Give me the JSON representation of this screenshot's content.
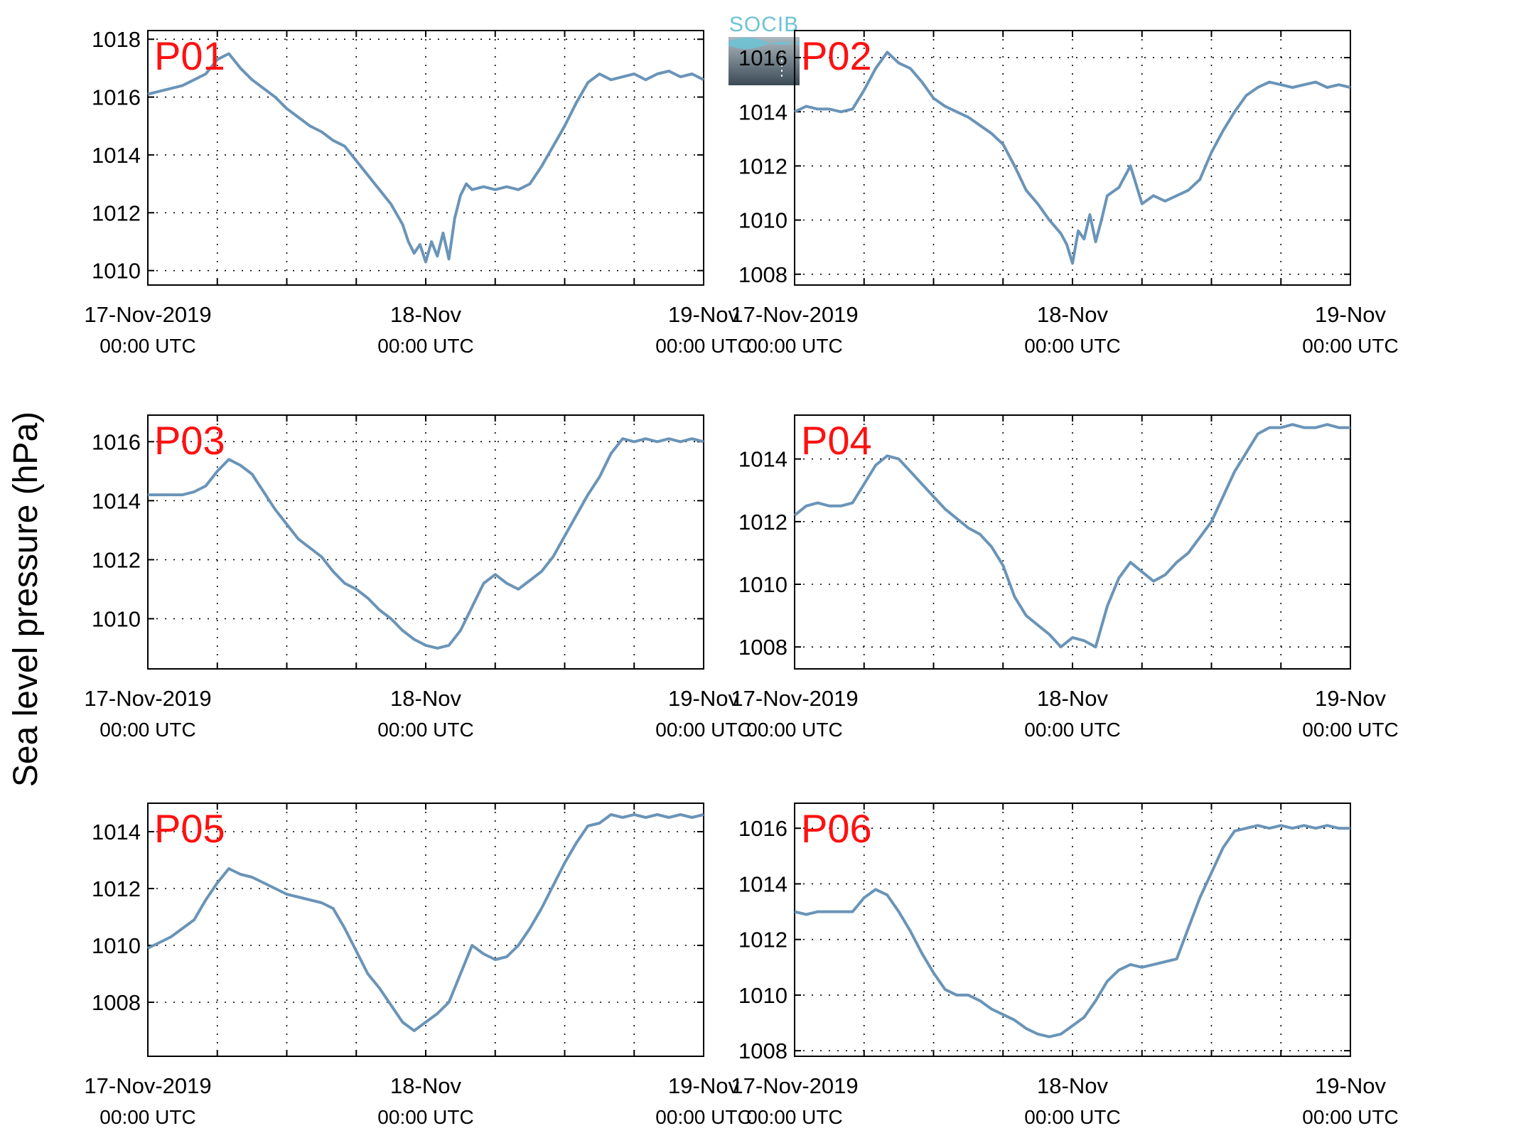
{
  "figure": {
    "ylabel": "Sea level pressure (hPa)",
    "logo_text": "SOCIB",
    "line_color": "#6a94b8",
    "label_color": "#ff1010"
  },
  "chart_data": [
    {
      "type": "line",
      "name": "P01",
      "x_ticks": [
        {
          "label": "17-Nov-2019",
          "sub": "00:00 UTC",
          "hour": 0
        },
        {
          "label": "18-Nov",
          "sub": "00:00 UTC",
          "hour": 24
        },
        {
          "label": "19-Nov",
          "sub": "00:00 UTC",
          "hour": 48
        }
      ],
      "xlim": [
        0,
        48
      ],
      "ylim": [
        1009.5,
        1018.3
      ],
      "yticks": [
        1010,
        1012,
        1014,
        1016,
        1018
      ],
      "points": [
        [
          0,
          1016.1
        ],
        [
          1,
          1016.2
        ],
        [
          2,
          1016.3
        ],
        [
          3,
          1016.4
        ],
        [
          4,
          1016.6
        ],
        [
          5,
          1016.8
        ],
        [
          6,
          1017.3
        ],
        [
          7,
          1017.5
        ],
        [
          8,
          1017.0
        ],
        [
          9,
          1016.6
        ],
        [
          10,
          1016.3
        ],
        [
          11,
          1016.0
        ],
        [
          12,
          1015.6
        ],
        [
          13,
          1015.3
        ],
        [
          14,
          1015.0
        ],
        [
          15,
          1014.8
        ],
        [
          16,
          1014.5
        ],
        [
          17,
          1014.3
        ],
        [
          18,
          1013.8
        ],
        [
          19,
          1013.3
        ],
        [
          20,
          1012.8
        ],
        [
          21,
          1012.3
        ],
        [
          22,
          1011.6
        ],
        [
          22.5,
          1011.0
        ],
        [
          23,
          1010.6
        ],
        [
          23.5,
          1010.9
        ],
        [
          24,
          1010.3
        ],
        [
          24.5,
          1011.0
        ],
        [
          25,
          1010.5
        ],
        [
          25.5,
          1011.3
        ],
        [
          26,
          1010.4
        ],
        [
          26.5,
          1011.8
        ],
        [
          27,
          1012.6
        ],
        [
          27.5,
          1013.0
        ],
        [
          28,
          1012.8
        ],
        [
          29,
          1012.9
        ],
        [
          30,
          1012.8
        ],
        [
          31,
          1012.9
        ],
        [
          32,
          1012.8
        ],
        [
          33,
          1013.0
        ],
        [
          34,
          1013.6
        ],
        [
          35,
          1014.3
        ],
        [
          36,
          1015.0
        ],
        [
          37,
          1015.8
        ],
        [
          38,
          1016.5
        ],
        [
          39,
          1016.8
        ],
        [
          40,
          1016.6
        ],
        [
          41,
          1016.7
        ],
        [
          42,
          1016.8
        ],
        [
          43,
          1016.6
        ],
        [
          44,
          1016.8
        ],
        [
          45,
          1016.9
        ],
        [
          46,
          1016.7
        ],
        [
          47,
          1016.8
        ],
        [
          48,
          1016.6
        ]
      ]
    },
    {
      "type": "line",
      "name": "P02",
      "x_ticks": [
        {
          "label": "17-Nov-2019",
          "sub": "00:00 UTC",
          "hour": 0
        },
        {
          "label": "18-Nov",
          "sub": "00:00 UTC",
          "hour": 24
        },
        {
          "label": "19-Nov",
          "sub": "00:00 UTC",
          "hour": 48
        }
      ],
      "xlim": [
        0,
        48
      ],
      "ylim": [
        1007.6,
        1017.0
      ],
      "yticks": [
        1008,
        1010,
        1012,
        1014,
        1016
      ],
      "points": [
        [
          0,
          1014.0
        ],
        [
          1,
          1014.2
        ],
        [
          2,
          1014.1
        ],
        [
          3,
          1014.1
        ],
        [
          4,
          1014.0
        ],
        [
          5,
          1014.1
        ],
        [
          6,
          1014.8
        ],
        [
          7,
          1015.6
        ],
        [
          8,
          1016.2
        ],
        [
          9,
          1015.8
        ],
        [
          10,
          1015.6
        ],
        [
          11,
          1015.1
        ],
        [
          12,
          1014.5
        ],
        [
          13,
          1014.2
        ],
        [
          14,
          1014.0
        ],
        [
          15,
          1013.8
        ],
        [
          16,
          1013.5
        ],
        [
          17,
          1013.2
        ],
        [
          18,
          1012.8
        ],
        [
          19,
          1012.0
        ],
        [
          20,
          1011.1
        ],
        [
          21,
          1010.6
        ],
        [
          22,
          1010.0
        ],
        [
          23,
          1009.5
        ],
        [
          23.5,
          1009.1
        ],
        [
          24,
          1008.4
        ],
        [
          24.5,
          1009.6
        ],
        [
          25,
          1009.3
        ],
        [
          25.5,
          1010.2
        ],
        [
          26,
          1009.2
        ],
        [
          26.5,
          1010.0
        ],
        [
          27,
          1010.9
        ],
        [
          28,
          1011.2
        ],
        [
          29,
          1012.0
        ],
        [
          30,
          1010.6
        ],
        [
          31,
          1010.9
        ],
        [
          32,
          1010.7
        ],
        [
          33,
          1010.9
        ],
        [
          34,
          1011.1
        ],
        [
          35,
          1011.5
        ],
        [
          36,
          1012.5
        ],
        [
          37,
          1013.3
        ],
        [
          38,
          1014.0
        ],
        [
          39,
          1014.6
        ],
        [
          40,
          1014.9
        ],
        [
          41,
          1015.1
        ],
        [
          42,
          1015.0
        ],
        [
          43,
          1014.9
        ],
        [
          44,
          1015.0
        ],
        [
          45,
          1015.1
        ],
        [
          46,
          1014.9
        ],
        [
          47,
          1015.0
        ],
        [
          48,
          1014.9
        ]
      ]
    },
    {
      "type": "line",
      "name": "P03",
      "x_ticks": [
        {
          "label": "17-Nov-2019",
          "sub": "00:00 UTC",
          "hour": 0
        },
        {
          "label": "18-Nov",
          "sub": "00:00 UTC",
          "hour": 24
        },
        {
          "label": "19-Nov",
          "sub": "00:00 UTC",
          "hour": 48
        }
      ],
      "xlim": [
        0,
        48
      ],
      "ylim": [
        1008.3,
        1016.9
      ],
      "yticks": [
        1010,
        1012,
        1014,
        1016
      ],
      "points": [
        [
          0,
          1014.2
        ],
        [
          1,
          1014.2
        ],
        [
          2,
          1014.2
        ],
        [
          3,
          1014.2
        ],
        [
          4,
          1014.3
        ],
        [
          5,
          1014.5
        ],
        [
          6,
          1015.0
        ],
        [
          7,
          1015.4
        ],
        [
          8,
          1015.2
        ],
        [
          9,
          1014.9
        ],
        [
          10,
          1014.3
        ],
        [
          11,
          1013.7
        ],
        [
          12,
          1013.2
        ],
        [
          13,
          1012.7
        ],
        [
          14,
          1012.4
        ],
        [
          15,
          1012.1
        ],
        [
          16,
          1011.6
        ],
        [
          17,
          1011.2
        ],
        [
          18,
          1011.0
        ],
        [
          19,
          1010.7
        ],
        [
          20,
          1010.3
        ],
        [
          21,
          1010.0
        ],
        [
          22,
          1009.6
        ],
        [
          23,
          1009.3
        ],
        [
          24,
          1009.1
        ],
        [
          25,
          1009.0
        ],
        [
          26,
          1009.1
        ],
        [
          27,
          1009.6
        ],
        [
          28,
          1010.4
        ],
        [
          29,
          1011.2
        ],
        [
          30,
          1011.5
        ],
        [
          31,
          1011.2
        ],
        [
          32,
          1011.0
        ],
        [
          33,
          1011.3
        ],
        [
          34,
          1011.6
        ],
        [
          35,
          1012.1
        ],
        [
          36,
          1012.8
        ],
        [
          37,
          1013.5
        ],
        [
          38,
          1014.2
        ],
        [
          39,
          1014.8
        ],
        [
          40,
          1015.6
        ],
        [
          41,
          1016.1
        ],
        [
          42,
          1016.0
        ],
        [
          43,
          1016.1
        ],
        [
          44,
          1016.0
        ],
        [
          45,
          1016.1
        ],
        [
          46,
          1016.0
        ],
        [
          47,
          1016.1
        ],
        [
          48,
          1016.0
        ]
      ]
    },
    {
      "type": "line",
      "name": "P04",
      "x_ticks": [
        {
          "label": "17-Nov-2019",
          "sub": "00:00 UTC",
          "hour": 0
        },
        {
          "label": "18-Nov",
          "sub": "00:00 UTC",
          "hour": 24
        },
        {
          "label": "19-Nov",
          "sub": "00:00 UTC",
          "hour": 48
        }
      ],
      "xlim": [
        0,
        48
      ],
      "ylim": [
        1007.3,
        1015.4
      ],
      "yticks": [
        1008,
        1010,
        1012,
        1014
      ],
      "points": [
        [
          0,
          1012.2
        ],
        [
          1,
          1012.5
        ],
        [
          2,
          1012.6
        ],
        [
          3,
          1012.5
        ],
        [
          4,
          1012.5
        ],
        [
          5,
          1012.6
        ],
        [
          6,
          1013.2
        ],
        [
          7,
          1013.8
        ],
        [
          8,
          1014.1
        ],
        [
          9,
          1014.0
        ],
        [
          10,
          1013.6
        ],
        [
          11,
          1013.2
        ],
        [
          12,
          1012.8
        ],
        [
          13,
          1012.4
        ],
        [
          14,
          1012.1
        ],
        [
          15,
          1011.8
        ],
        [
          16,
          1011.6
        ],
        [
          17,
          1011.2
        ],
        [
          18,
          1010.6
        ],
        [
          19,
          1009.6
        ],
        [
          20,
          1009.0
        ],
        [
          21,
          1008.7
        ],
        [
          22,
          1008.4
        ],
        [
          23,
          1008.0
        ],
        [
          24,
          1008.3
        ],
        [
          25,
          1008.2
        ],
        [
          26,
          1008.0
        ],
        [
          27,
          1009.3
        ],
        [
          28,
          1010.2
        ],
        [
          29,
          1010.7
        ],
        [
          30,
          1010.4
        ],
        [
          31,
          1010.1
        ],
        [
          32,
          1010.3
        ],
        [
          33,
          1010.7
        ],
        [
          34,
          1011.0
        ],
        [
          35,
          1011.5
        ],
        [
          36,
          1012.0
        ],
        [
          37,
          1012.8
        ],
        [
          38,
          1013.6
        ],
        [
          39,
          1014.2
        ],
        [
          40,
          1014.8
        ],
        [
          41,
          1015.0
        ],
        [
          42,
          1015.0
        ],
        [
          43,
          1015.1
        ],
        [
          44,
          1015.0
        ],
        [
          45,
          1015.0
        ],
        [
          46,
          1015.1
        ],
        [
          47,
          1015.0
        ],
        [
          48,
          1015.0
        ]
      ]
    },
    {
      "type": "line",
      "name": "P05",
      "x_ticks": [
        {
          "label": "17-Nov-2019",
          "sub": "00:00 UTC",
          "hour": 0
        },
        {
          "label": "18-Nov",
          "sub": "00:00 UTC",
          "hour": 24
        },
        {
          "label": "19-Nov",
          "sub": "00:00 UTC",
          "hour": 48
        }
      ],
      "xlim": [
        0,
        48
      ],
      "ylim": [
        1006.1,
        1015.0
      ],
      "yticks": [
        1008,
        1010,
        1012,
        1014
      ],
      "points": [
        [
          0,
          1009.9
        ],
        [
          1,
          1010.1
        ],
        [
          2,
          1010.3
        ],
        [
          3,
          1010.6
        ],
        [
          4,
          1010.9
        ],
        [
          5,
          1011.6
        ],
        [
          6,
          1012.2
        ],
        [
          7,
          1012.7
        ],
        [
          8,
          1012.5
        ],
        [
          9,
          1012.4
        ],
        [
          10,
          1012.2
        ],
        [
          11,
          1012.0
        ],
        [
          12,
          1011.8
        ],
        [
          13,
          1011.7
        ],
        [
          14,
          1011.6
        ],
        [
          15,
          1011.5
        ],
        [
          16,
          1011.3
        ],
        [
          17,
          1010.6
        ],
        [
          18,
          1009.8
        ],
        [
          19,
          1009.0
        ],
        [
          20,
          1008.5
        ],
        [
          21,
          1007.9
        ],
        [
          22,
          1007.3
        ],
        [
          23,
          1007.0
        ],
        [
          24,
          1007.3
        ],
        [
          25,
          1007.6
        ],
        [
          26,
          1008.0
        ],
        [
          27,
          1009.0
        ],
        [
          28,
          1010.0
        ],
        [
          29,
          1009.7
        ],
        [
          30,
          1009.5
        ],
        [
          31,
          1009.6
        ],
        [
          32,
          1010.0
        ],
        [
          33,
          1010.6
        ],
        [
          34,
          1011.3
        ],
        [
          35,
          1012.1
        ],
        [
          36,
          1012.9
        ],
        [
          37,
          1013.6
        ],
        [
          38,
          1014.2
        ],
        [
          39,
          1014.3
        ],
        [
          40,
          1014.6
        ],
        [
          41,
          1014.5
        ],
        [
          42,
          1014.6
        ],
        [
          43,
          1014.5
        ],
        [
          44,
          1014.6
        ],
        [
          45,
          1014.5
        ],
        [
          46,
          1014.6
        ],
        [
          47,
          1014.5
        ],
        [
          48,
          1014.6
        ]
      ]
    },
    {
      "type": "line",
      "name": "P06",
      "x_ticks": [
        {
          "label": "17-Nov-2019",
          "sub": "00:00 UTC",
          "hour": 0
        },
        {
          "label": "18-Nov",
          "sub": "00:00 UTC",
          "hour": 24
        },
        {
          "label": "19-Nov",
          "sub": "00:00 UTC",
          "hour": 48
        }
      ],
      "xlim": [
        0,
        48
      ],
      "ylim": [
        1007.8,
        1016.9
      ],
      "yticks": [
        1008,
        1010,
        1012,
        1014,
        1016
      ],
      "points": [
        [
          0,
          1013.0
        ],
        [
          1,
          1012.9
        ],
        [
          2,
          1013.0
        ],
        [
          3,
          1013.0
        ],
        [
          4,
          1013.0
        ],
        [
          5,
          1013.0
        ],
        [
          6,
          1013.5
        ],
        [
          7,
          1013.8
        ],
        [
          8,
          1013.6
        ],
        [
          9,
          1013.0
        ],
        [
          10,
          1012.3
        ],
        [
          11,
          1011.5
        ],
        [
          12,
          1010.8
        ],
        [
          13,
          1010.2
        ],
        [
          14,
          1010.0
        ],
        [
          15,
          1010.0
        ],
        [
          16,
          1009.8
        ],
        [
          17,
          1009.5
        ],
        [
          18,
          1009.3
        ],
        [
          19,
          1009.1
        ],
        [
          20,
          1008.8
        ],
        [
          21,
          1008.6
        ],
        [
          22,
          1008.5
        ],
        [
          23,
          1008.6
        ],
        [
          24,
          1008.9
        ],
        [
          25,
          1009.2
        ],
        [
          26,
          1009.8
        ],
        [
          27,
          1010.5
        ],
        [
          28,
          1010.9
        ],
        [
          29,
          1011.1
        ],
        [
          30,
          1011.0
        ],
        [
          31,
          1011.1
        ],
        [
          32,
          1011.2
        ],
        [
          33,
          1011.3
        ],
        [
          34,
          1012.4
        ],
        [
          35,
          1013.5
        ],
        [
          36,
          1014.4
        ],
        [
          37,
          1015.3
        ],
        [
          38,
          1015.9
        ],
        [
          39,
          1016.0
        ],
        [
          40,
          1016.1
        ],
        [
          41,
          1016.0
        ],
        [
          42,
          1016.1
        ],
        [
          43,
          1016.0
        ],
        [
          44,
          1016.1
        ],
        [
          45,
          1016.0
        ],
        [
          46,
          1016.1
        ],
        [
          47,
          1016.0
        ],
        [
          48,
          1016.0
        ]
      ]
    }
  ]
}
